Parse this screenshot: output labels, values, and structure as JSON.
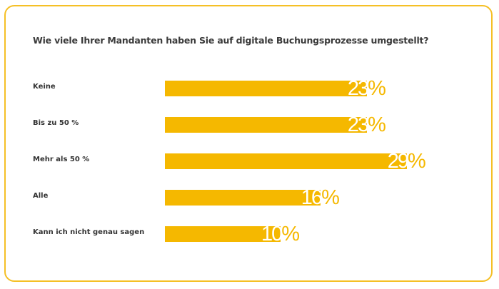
{
  "chart_data": {
    "type": "bar",
    "orientation": "horizontal",
    "title": "Wie viele Ihrer Mandanten haben Sie auf digitale Buchungsprozesse umgestellt?",
    "categories": [
      "Keine",
      "Bis zu 50 %",
      "Mehr als 50 %",
      "Alle",
      "Kann ich nicht genau sagen"
    ],
    "values": [
      23,
      23,
      29,
      16,
      10
    ],
    "value_suffix": "%",
    "color": "#f5b800",
    "xlabel": "",
    "ylabel": "",
    "grid": false
  }
}
